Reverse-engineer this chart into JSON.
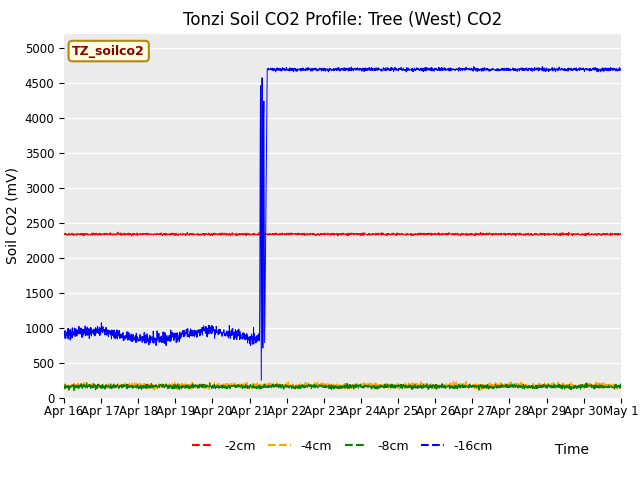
{
  "title": "Tonzi Soil CO2 Profile: Tree (West) CO2",
  "ylabel": "Soil CO2 (mV)",
  "xlabel": "Time",
  "legend_label": "TZ_soilco2",
  "series_labels": [
    "-2cm",
    "-4cm",
    "-8cm",
    "-16cm"
  ],
  "series_colors": [
    "red",
    "orange",
    "green",
    "blue"
  ],
  "ylim": [
    0,
    5200
  ],
  "yticks": [
    0,
    500,
    1000,
    1500,
    2000,
    2500,
    3000,
    3500,
    4000,
    4500,
    5000
  ],
  "background_color": "#ebebeb",
  "grid_color": "white",
  "title_fontsize": 12,
  "axis_label_fontsize": 10,
  "tick_fontsize": 8.5,
  "red_value": 2340,
  "blue_pre_value": 900,
  "blue_post_value": 4690,
  "orange_value": 170,
  "green_value": 160,
  "transition_day": 5.3,
  "total_days": 15
}
